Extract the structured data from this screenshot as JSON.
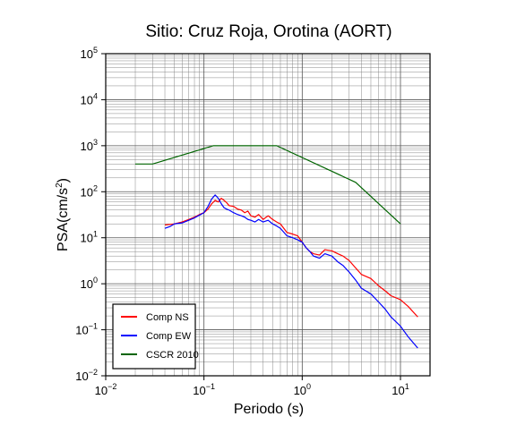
{
  "chart_data": {
    "type": "line",
    "title": "Sitio: Cruz Roja, Orotina (AORT)",
    "xlabel": "Periodo (s)",
    "ylabel_base": "PSA(cm/s",
    "ylabel_exp": "2",
    "ylabel_close": ")",
    "x_scale": "log",
    "y_scale": "log",
    "xlim": [
      0.01,
      20
    ],
    "ylim": [
      0.01,
      100000
    ],
    "x_ticks": [
      {
        "value": 0.01,
        "base": "10",
        "exp": "−2"
      },
      {
        "value": 0.1,
        "base": "10",
        "exp": "−1"
      },
      {
        "value": 1,
        "base": "10",
        "exp": "0"
      },
      {
        "value": 10,
        "base": "10",
        "exp": "1"
      }
    ],
    "y_ticks": [
      {
        "value": 0.01,
        "base": "10",
        "exp": "−2"
      },
      {
        "value": 0.1,
        "base": "10",
        "exp": "−1"
      },
      {
        "value": 1,
        "base": "10",
        "exp": "0"
      },
      {
        "value": 10,
        "base": "10",
        "exp": "1"
      },
      {
        "value": 100,
        "base": "10",
        "exp": "2"
      },
      {
        "value": 1000,
        "base": "10",
        "exp": "3"
      },
      {
        "value": 10000,
        "base": "10",
        "exp": "4"
      },
      {
        "value": 100000,
        "base": "10",
        "exp": "5"
      }
    ],
    "grid": true,
    "legend_position": "bottom-left",
    "series": [
      {
        "name": "Comp NS",
        "color": "#ff0000",
        "x": [
          0.04,
          0.045,
          0.05,
          0.06,
          0.07,
          0.08,
          0.09,
          0.1,
          0.11,
          0.12,
          0.13,
          0.14,
          0.15,
          0.16,
          0.17,
          0.18,
          0.2,
          0.22,
          0.24,
          0.26,
          0.28,
          0.3,
          0.33,
          0.36,
          0.4,
          0.45,
          0.5,
          0.55,
          0.6,
          0.7,
          0.8,
          0.9,
          1.0,
          1.1,
          1.2,
          1.3,
          1.5,
          1.7,
          2.0,
          2.3,
          2.6,
          3.0,
          3.5,
          4.0,
          5.0,
          6.0,
          7.0,
          8.0,
          10.0,
          12.0,
          15.0
        ],
        "y": [
          19,
          19.5,
          20,
          22,
          25,
          28,
          32,
          35,
          42,
          55,
          65,
          60,
          72,
          65,
          58,
          50,
          48,
          42,
          40,
          35,
          38,
          30,
          28,
          32,
          25,
          30,
          25,
          22,
          20,
          13,
          12,
          11,
          8,
          6,
          5,
          4.5,
          4.2,
          5.5,
          5.2,
          4.5,
          4,
          3.2,
          2.2,
          1.6,
          1.3,
          0.9,
          0.7,
          0.55,
          0.45,
          0.32,
          0.19
        ]
      },
      {
        "name": "Comp EW",
        "color": "#0000ff",
        "x": [
          0.04,
          0.045,
          0.05,
          0.06,
          0.07,
          0.08,
          0.09,
          0.1,
          0.11,
          0.12,
          0.13,
          0.14,
          0.15,
          0.16,
          0.17,
          0.18,
          0.2,
          0.22,
          0.24,
          0.26,
          0.28,
          0.3,
          0.33,
          0.36,
          0.4,
          0.45,
          0.5,
          0.55,
          0.6,
          0.7,
          0.8,
          0.9,
          1.0,
          1.1,
          1.2,
          1.3,
          1.5,
          1.7,
          2.0,
          2.3,
          2.6,
          3.0,
          3.5,
          4.0,
          5.0,
          6.0,
          7.0,
          8.0,
          10.0,
          12.0,
          15.0
        ],
        "y": [
          16,
          17.5,
          20,
          21,
          24,
          27,
          31,
          35,
          48,
          70,
          85,
          72,
          55,
          45,
          42,
          40,
          35,
          32,
          30,
          28,
          25,
          24,
          22,
          25,
          22,
          24,
          20,
          18,
          16,
          11,
          10,
          9,
          8,
          6,
          5,
          4,
          3.6,
          4.5,
          4.0,
          3.0,
          2.5,
          1.8,
          1.2,
          0.8,
          0.6,
          0.4,
          0.28,
          0.19,
          0.12,
          0.07,
          0.04
        ]
      },
      {
        "name": "CSCR 2010",
        "color": "#006400",
        "x": [
          0.02,
          0.03,
          0.125,
          0.55,
          3.5,
          10.0
        ],
        "y": [
          400,
          400,
          1000,
          1000,
          160,
          20
        ]
      }
    ]
  }
}
